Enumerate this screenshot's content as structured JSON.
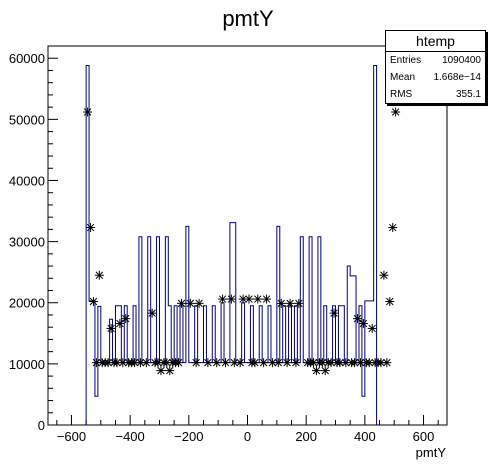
{
  "chart_data": {
    "type": "bar",
    "title": "pmtY",
    "xlabel": "pmtY",
    "ylabel": "",
    "xlim": [
      -680,
      680
    ],
    "ylim": [
      0,
      62000
    ],
    "bin_width": 10,
    "first_bin_low": -550,
    "xticks": [
      -600,
      -400,
      -200,
      0,
      200,
      400,
      600
    ],
    "yticks": [
      0,
      10000,
      20000,
      30000,
      40000,
      50000,
      60000
    ],
    "hist_values": [
      58800,
      20300,
      20300,
      4700,
      19400,
      10200,
      10200,
      10200,
      17300,
      10200,
      19500,
      19500,
      10200,
      19500,
      10200,
      10200,
      19500,
      10200,
      30800,
      10200,
      10200,
      30800,
      10200,
      10200,
      30800,
      10200,
      10200,
      30800,
      19500,
      10200,
      19500,
      10200,
      19500,
      10200,
      32500,
      10200,
      10200,
      19500,
      10200,
      10200,
      19500,
      10200,
      10200,
      19500,
      10200,
      10200,
      20000,
      10200,
      10200,
      33100,
      33100,
      10200,
      10200,
      20000,
      10200,
      10200,
      19500,
      10200,
      10200,
      19500,
      10200,
      10200,
      19500,
      10200,
      10200,
      32500,
      10200,
      19500,
      10200,
      19500,
      10200,
      19500,
      10200,
      30800,
      10200,
      10200,
      30800,
      10200,
      10200,
      30800,
      10200,
      19500,
      10200,
      10200,
      19500,
      10200,
      19500,
      19500,
      10200,
      26000,
      24400,
      24400,
      10200,
      19500,
      4700,
      20300,
      20300,
      20300,
      58800
    ],
    "markers": [
      [
        -545,
        51200
      ],
      [
        -535,
        32300
      ],
      [
        -525,
        20200
      ],
      [
        -515,
        10200
      ],
      [
        -505,
        24500
      ],
      [
        -495,
        10200
      ],
      [
        -485,
        10200
      ],
      [
        -475,
        10200
      ],
      [
        -465,
        15800
      ],
      [
        -455,
        10200
      ],
      [
        -445,
        10200
      ],
      [
        -435,
        16600
      ],
      [
        -425,
        10200
      ],
      [
        -415,
        17400
      ],
      [
        -405,
        10200
      ],
      [
        -395,
        10200
      ],
      [
        -385,
        10200
      ],
      [
        -365,
        10200
      ],
      [
        -345,
        10200
      ],
      [
        -325,
        18300
      ],
      [
        -315,
        10200
      ],
      [
        -305,
        10200
      ],
      [
        -295,
        8900
      ],
      [
        -285,
        10200
      ],
      [
        -275,
        10200
      ],
      [
        -265,
        8900
      ],
      [
        -255,
        10200
      ],
      [
        -245,
        10200
      ],
      [
        -235,
        10200
      ],
      [
        -225,
        19900
      ],
      [
        -195,
        19900
      ],
      [
        -175,
        10200
      ],
      [
        -165,
        19900
      ],
      [
        -135,
        10200
      ],
      [
        -105,
        10200
      ],
      [
        -85,
        20600
      ],
      [
        -75,
        10200
      ],
      [
        -55,
        20600
      ],
      [
        -45,
        10200
      ],
      [
        -25,
        10200
      ],
      [
        -15,
        20600
      ],
      [
        5,
        20600
      ],
      [
        15,
        10200
      ],
      [
        25,
        10200
      ],
      [
        35,
        20600
      ],
      [
        55,
        10200
      ],
      [
        65,
        20600
      ],
      [
        85,
        10200
      ],
      [
        105,
        10200
      ],
      [
        115,
        19900
      ],
      [
        135,
        10200
      ],
      [
        145,
        19900
      ],
      [
        165,
        10200
      ],
      [
        175,
        19900
      ],
      [
        205,
        10200
      ],
      [
        215,
        10200
      ],
      [
        225,
        10200
      ],
      [
        235,
        8900
      ],
      [
        245,
        10200
      ],
      [
        255,
        10200
      ],
      [
        265,
        8900
      ],
      [
        275,
        10200
      ],
      [
        285,
        10200
      ],
      [
        295,
        18300
      ],
      [
        305,
        10200
      ],
      [
        315,
        10200
      ],
      [
        335,
        10200
      ],
      [
        355,
        10200
      ],
      [
        365,
        10200
      ],
      [
        375,
        17400
      ],
      [
        385,
        10200
      ],
      [
        395,
        16600
      ],
      [
        405,
        10200
      ],
      [
        415,
        10200
      ],
      [
        425,
        15800
      ],
      [
        435,
        10200
      ],
      [
        445,
        10200
      ],
      [
        455,
        10200
      ],
      [
        465,
        24500
      ],
      [
        475,
        10200
      ],
      [
        485,
        20200
      ],
      [
        495,
        32300
      ],
      [
        505,
        51200
      ]
    ],
    "grid": false,
    "stats": {
      "name": "htemp",
      "entries_label": "Entries",
      "entries_value": "1090400",
      "mean_label": "Mean",
      "mean_value": "1.668e−14",
      "rms_label": "RMS",
      "rms_value": "355.1"
    },
    "colors": {
      "hist_line": "#000080",
      "marker": "#000000",
      "frame": "#000000"
    }
  }
}
